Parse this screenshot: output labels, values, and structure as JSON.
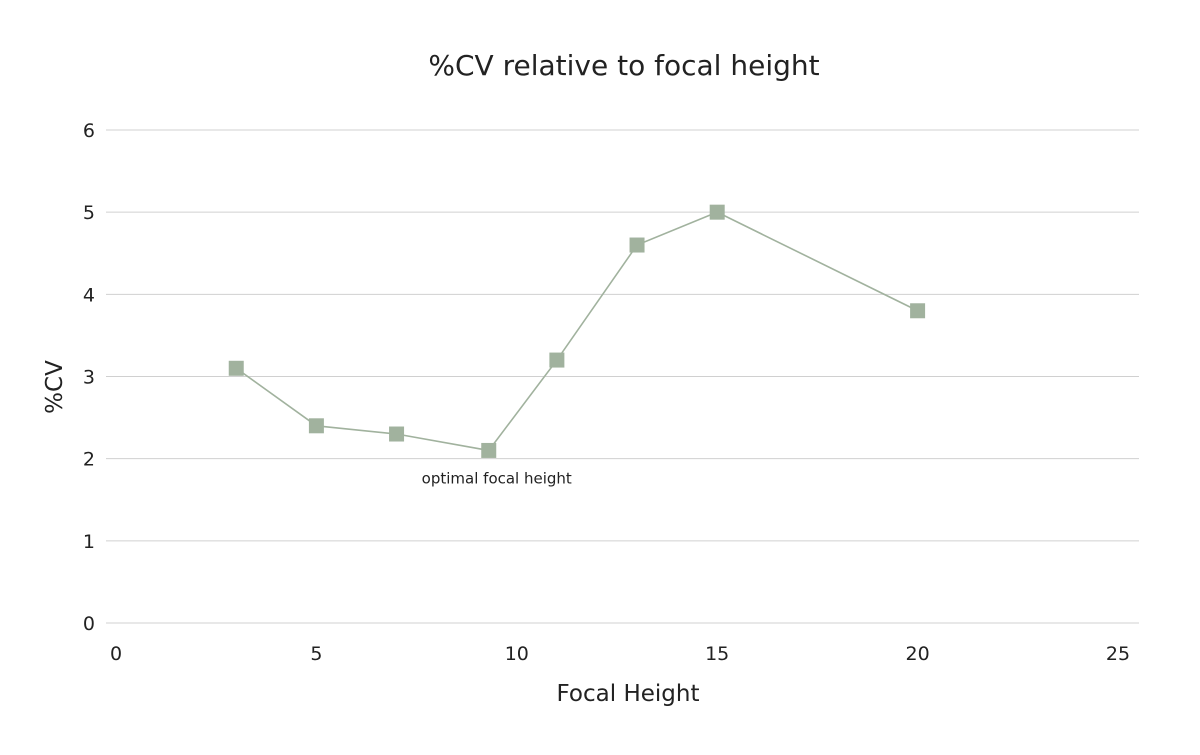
{
  "chart_data": {
    "type": "scatter",
    "title": "%CV relative to focal height",
    "xlabel": "Focal Height",
    "ylabel": "%CV",
    "xlim": [
      0,
      25
    ],
    "ylim": [
      0,
      6
    ],
    "xticks": [
      0,
      5,
      10,
      15,
      20,
      25
    ],
    "yticks": [
      0,
      1,
      2,
      3,
      4,
      5,
      6
    ],
    "grid": "horizontal",
    "series": [
      {
        "color": "#a1b29e",
        "marker": "square",
        "lines": true,
        "points": [
          {
            "x": 3,
            "y": 3.1
          },
          {
            "x": 5,
            "y": 2.4
          },
          {
            "x": 7,
            "y": 2.3
          },
          {
            "x": 9.3,
            "y": 2.1
          },
          {
            "x": 11,
            "y": 3.2
          },
          {
            "x": 13,
            "y": 4.6
          },
          {
            "x": 15,
            "y": 5.0
          },
          {
            "x": 20,
            "y": 3.8
          }
        ]
      }
    ],
    "annotations": [
      {
        "text": "optimal focal height",
        "x": 9.3,
        "y": 2.1
      }
    ]
  }
}
